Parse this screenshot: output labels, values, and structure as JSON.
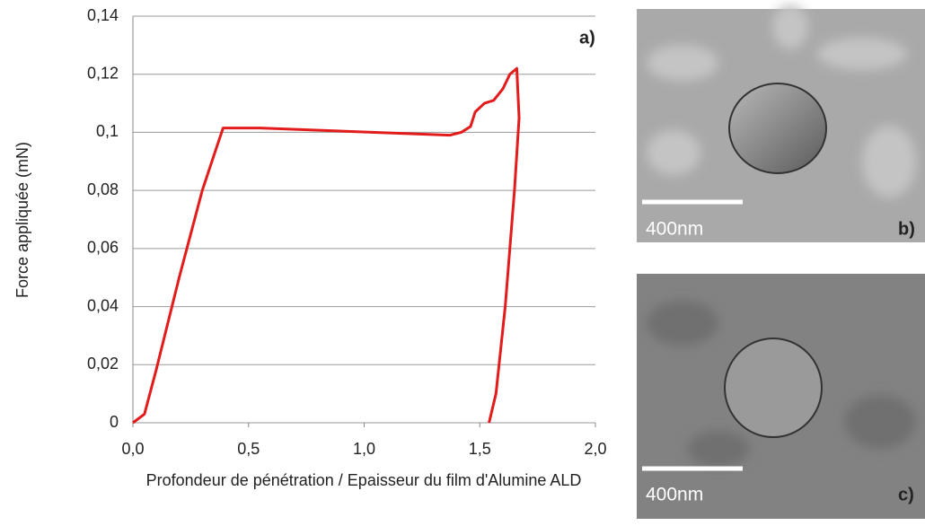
{
  "chart_data": {
    "type": "line",
    "annotation": "a)",
    "xlabel": "Profondeur de pénétration / Epaisseur du film d'Alumine ALD",
    "ylabel": "Force appliquée (mN)",
    "xlim": [
      0,
      2
    ],
    "ylim": [
      0,
      0.14
    ],
    "xticks": [
      {
        "value": 0,
        "label": "0,0"
      },
      {
        "value": 0.5,
        "label": "0,5"
      },
      {
        "value": 1,
        "label": "1,0"
      },
      {
        "value": 1.5,
        "label": "1,5"
      },
      {
        "value": 2,
        "label": "2,0"
      }
    ],
    "yticks": [
      0,
      {
        "value": 0.02,
        "label": "0,02"
      },
      {
        "value": 0.04,
        "label": "0,04"
      },
      {
        "value": 0.06,
        "label": "0,06"
      },
      {
        "value": 0.08,
        "label": "0,08"
      },
      {
        "value": 0.1,
        "label": "0,1"
      },
      {
        "value": 0.12,
        "label": "0,12"
      },
      {
        "value": 0.14,
        "label": "0,14"
      }
    ],
    "grid": true,
    "series": [
      {
        "color": "#e31b1b",
        "x": [
          0,
          0.05,
          0.1,
          0.15,
          0.2,
          0.25,
          0.3,
          0.35,
          0.39,
          0.55,
          1.37,
          1.42,
          1.46,
          1.48,
          1.52,
          1.56,
          1.6,
          1.63,
          1.66,
          1.67,
          1.65,
          1.61,
          1.57,
          1.54
        ],
        "values": [
          0,
          0.003,
          0.018,
          0.034,
          0.05,
          0.065,
          0.08,
          0.092,
          0.1015,
          0.1015,
          0.099,
          0.1,
          0.102,
          0.107,
          0.11,
          0.111,
          0.115,
          0.12,
          0.122,
          0.105,
          0.08,
          0.04,
          0.01,
          0
        ]
      }
    ]
  },
  "images": [
    {
      "scale_label": "400nm",
      "panel_label": "b)"
    },
    {
      "scale_label": "400nm",
      "panel_label": "c)"
    }
  ]
}
